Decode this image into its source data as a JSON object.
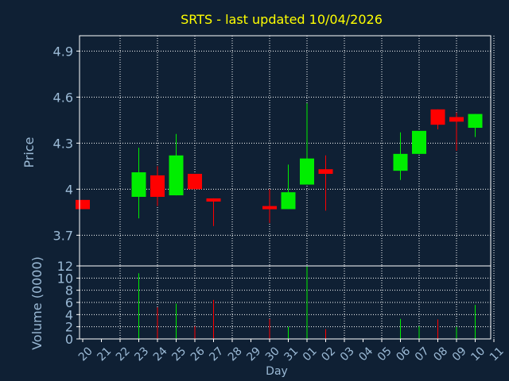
{
  "title": "SRTS - last updated 10/04/2026",
  "colors": {
    "background": "#0f2034",
    "frame": "#ffffff",
    "grid": "#ffffff",
    "title": "#ffff00",
    "axis_text": "#9bbad6",
    "up": "#00ee00",
    "down": "#ff0000"
  },
  "chart_data": [
    {
      "type": "candlestick",
      "ylabel": "Price",
      "ylim": [
        3.5,
        5.0
      ],
      "yticks": [
        3.7,
        4,
        4.3,
        4.6,
        4.9
      ],
      "ytick_labels": [
        "3.7",
        "4",
        "4.3",
        "4.6",
        "4.9"
      ],
      "grid": true,
      "categories": [
        "20",
        "21",
        "22",
        "23",
        "24",
        "25",
        "26",
        "27",
        "28",
        "29",
        "30",
        "31",
        "01",
        "02",
        "03",
        "04",
        "05",
        "06",
        "07",
        "08",
        "09",
        "10",
        "11"
      ],
      "candles": [
        {
          "day": "20",
          "open": 3.93,
          "high": 3.93,
          "low": 3.87,
          "close": 3.87
        },
        {
          "day": "23",
          "open": 3.95,
          "high": 4.27,
          "low": 3.81,
          "close": 4.11
        },
        {
          "day": "24",
          "open": 4.09,
          "high": 4.15,
          "low": 3.89,
          "close": 3.95
        },
        {
          "day": "25",
          "open": 3.96,
          "high": 4.36,
          "low": 3.96,
          "close": 4.22
        },
        {
          "day": "26",
          "open": 4.1,
          "high": 4.1,
          "low": 4.0,
          "close": 4.0
        },
        {
          "day": "27",
          "open": 3.94,
          "high": 3.94,
          "low": 3.76,
          "close": 3.92
        },
        {
          "day": "30",
          "open": 3.89,
          "high": 4.0,
          "low": 3.78,
          "close": 3.87
        },
        {
          "day": "31",
          "open": 3.87,
          "high": 4.16,
          "low": 3.87,
          "close": 3.98
        },
        {
          "day": "01",
          "open": 4.03,
          "high": 4.56,
          "low": 4.03,
          "close": 4.2
        },
        {
          "day": "02",
          "open": 4.13,
          "high": 4.22,
          "low": 3.86,
          "close": 4.1
        },
        {
          "day": "06",
          "open": 4.12,
          "high": 4.37,
          "low": 4.06,
          "close": 4.23
        },
        {
          "day": "07",
          "open": 4.23,
          "high": 4.38,
          "low": 4.23,
          "close": 4.38
        },
        {
          "day": "08",
          "open": 4.52,
          "high": 4.52,
          "low": 4.39,
          "close": 4.42
        },
        {
          "day": "09",
          "open": 4.47,
          "high": 4.5,
          "low": 4.25,
          "close": 4.44
        },
        {
          "day": "10",
          "open": 4.4,
          "high": 4.49,
          "low": 4.34,
          "close": 4.49
        }
      ]
    },
    {
      "type": "bar",
      "ylabel": "Volume (0000)",
      "xlabel": "Day",
      "ylim": [
        0,
        12
      ],
      "yticks": [
        0,
        2,
        4,
        6,
        8,
        10,
        12
      ],
      "ytick_labels": [
        "0",
        "2",
        "4",
        "6",
        "8",
        "10",
        "12"
      ],
      "grid": true,
      "categories": [
        "20",
        "21",
        "22",
        "23",
        "24",
        "25",
        "26",
        "27",
        "28",
        "29",
        "30",
        "31",
        "01",
        "02",
        "03",
        "04",
        "05",
        "06",
        "07",
        "08",
        "09",
        "10",
        "11"
      ],
      "volumes": [
        {
          "day": "23",
          "value": 10.8,
          "direction": "up"
        },
        {
          "day": "24",
          "value": 5.2,
          "direction": "down"
        },
        {
          "day": "25",
          "value": 5.8,
          "direction": "up"
        },
        {
          "day": "26",
          "value": 2.1,
          "direction": "down"
        },
        {
          "day": "27",
          "value": 6.4,
          "direction": "down"
        },
        {
          "day": "30",
          "value": 3.3,
          "direction": "down"
        },
        {
          "day": "31",
          "value": 2.0,
          "direction": "up"
        },
        {
          "day": "01",
          "value": 12.0,
          "direction": "up"
        },
        {
          "day": "02",
          "value": 1.6,
          "direction": "down"
        },
        {
          "day": "06",
          "value": 3.3,
          "direction": "up"
        },
        {
          "day": "07",
          "value": 2.1,
          "direction": "up"
        },
        {
          "day": "08",
          "value": 3.2,
          "direction": "down"
        },
        {
          "day": "09",
          "value": 2.0,
          "direction": "up"
        },
        {
          "day": "10",
          "value": 5.6,
          "direction": "up"
        }
      ]
    }
  ]
}
